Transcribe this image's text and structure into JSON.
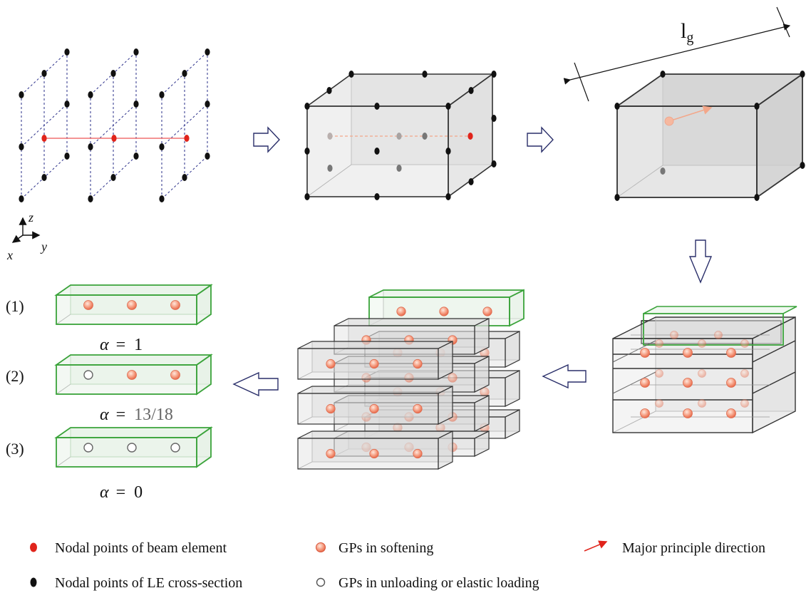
{
  "length_label": "l",
  "length_label_sub": "g",
  "axes": {
    "z": "z",
    "x": "x",
    "y": "y"
  },
  "cases": [
    {
      "number": "(1)",
      "alpha_sym": "α",
      "eq": "=",
      "alpha_value": "1",
      "gp_states": [
        "softening",
        "softening",
        "softening"
      ]
    },
    {
      "number": "(2)",
      "alpha_sym": "α",
      "eq": "=",
      "alpha_value": "13/18",
      "gp_states": [
        "unloading",
        "softening",
        "softening"
      ]
    },
    {
      "number": "(3)",
      "alpha_sym": "α",
      "eq": "=",
      "alpha_value": "0",
      "gp_states": [
        "unloading",
        "unloading",
        "unloading"
      ]
    }
  ],
  "legend": {
    "beam_nodes": "Nodal points of beam element",
    "le_nodes": "Nodal points of LE cross-section",
    "gp_softening": "GPs in softening",
    "gp_unloading": "GPs in unloading or elastic loading",
    "major_direction": "Major principle direction"
  },
  "colors": {
    "beam_node": "#e0241b",
    "le_node": "#111111",
    "gp_softening": "#f08a70",
    "gp_unloading": "#ffffff",
    "principal_arrow": "#e0241b",
    "highlight_edge": "#3aa33a",
    "box_fill": "#d9d9d9",
    "beam_line": "#f07070",
    "grid_dash": "#2a2f8a"
  }
}
